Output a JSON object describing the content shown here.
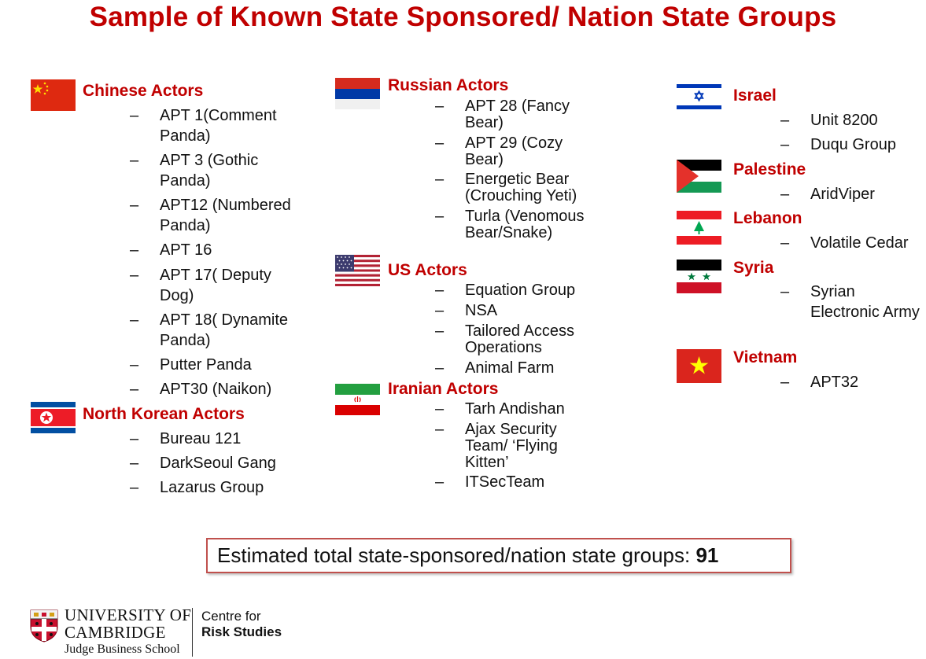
{
  "title": "Sample of Known State Sponsored/ Nation State Groups",
  "dash": "–",
  "columns": [
    {
      "groups": [
        {
          "flag": "china-flag",
          "heading": "Chinese Actors",
          "items": [
            "APT 1(Comment Panda)",
            "APT 3 (Gothic Panda)",
            "APT12 (Numbered Panda)",
            "APT 16",
            "APT 17( Deputy Dog)",
            "APT 18( Dynamite Panda)",
            "Putter Panda",
            "APT30 (Naikon)"
          ]
        },
        {
          "flag": "north-korea-flag",
          "heading": "North Korean Actors",
          "items": [
            "Bureau 121",
            "DarkSeoul Gang",
            "Lazarus Group"
          ]
        }
      ]
    },
    {
      "groups": [
        {
          "flag": "russia-flag",
          "heading": "Russian Actors",
          "items": [
            "APT 28 (Fancy Bear)",
            "APT 29 (Cozy Bear)",
            "Energetic Bear (Crouching Yeti)",
            "Turla (Venomous Bear/Snake)"
          ]
        },
        {
          "flag": "usa-flag",
          "heading": "US Actors",
          "items": [
            "Equation Group",
            "NSA",
            "Tailored Access Operations",
            "Animal Farm"
          ]
        },
        {
          "flag": "iran-flag",
          "heading": "Iranian Actors",
          "items": [
            "Tarh Andishan",
            "Ajax Security Team/ ‘Flying Kitten’",
            "ITSecTeam"
          ]
        }
      ]
    },
    {
      "groups": [
        {
          "flag": "israel-flag",
          "heading": "Israel",
          "items": [
            "Unit 8200",
            "Duqu Group"
          ]
        },
        {
          "flag": "palestine-flag",
          "heading": "Palestine",
          "items": [
            "AridViper"
          ]
        },
        {
          "flag": "lebanon-flag",
          "heading": "Lebanon",
          "items": [
            "Volatile Cedar"
          ]
        },
        {
          "flag": "syria-flag",
          "heading": "Syria",
          "items": [
            "Syrian Electronic Army"
          ]
        },
        {
          "flag": "vietnam-flag",
          "heading": "Vietnam",
          "items": [
            "APT32"
          ]
        }
      ]
    }
  ],
  "summary": {
    "text": "Estimated total state-sponsored/nation state groups: ",
    "value": "91"
  },
  "footer": {
    "university_line1": "UNIVERSITY OF",
    "university_line2": "CAMBRIDGE",
    "school": "Judge Business School",
    "centre_line1": "Centre for",
    "centre_line2": "Risk Studies",
    "crest_icon": "cambridge-crest-icon"
  },
  "colors": {
    "accent": "#c00000",
    "box_border": "#c0504d"
  }
}
